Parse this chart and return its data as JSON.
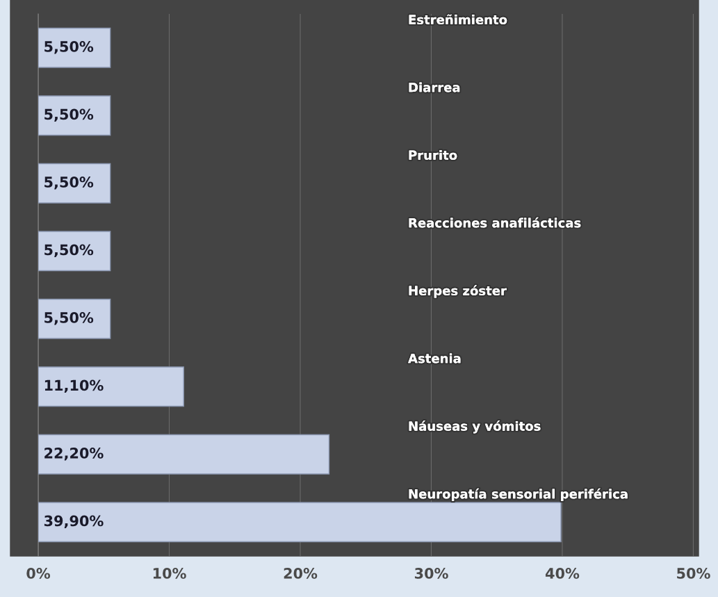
{
  "chart_data": {
    "type": "bar",
    "orientation": "horizontal",
    "categories": [
      "Estreñimiento",
      "Diarrea",
      "Prurito",
      "Reacciones anafilácticas",
      "Herpes zóster",
      "Astenia",
      "Náuseas y vómitos",
      "Neuropatía sensorial periférica"
    ],
    "values": [
      5.5,
      5.5,
      5.5,
      5.5,
      5.5,
      11.1,
      22.2,
      39.9
    ],
    "value_labels": [
      "5,50%",
      "5,50%",
      "5,50%",
      "5,50%",
      "5,50%",
      "11,10%",
      "22,20%",
      "39,90%"
    ],
    "color": "#c9d3e8",
    "xlim": [
      0,
      50.4
    ],
    "xticks": [
      {
        "value": 0,
        "label": "0%"
      },
      {
        "value": 10,
        "label": "10%"
      },
      {
        "value": 20,
        "label": "20%"
      },
      {
        "value": 30,
        "label": "30%"
      },
      {
        "value": 40,
        "label": "40%"
      },
      {
        "value": 50,
        "label": "50%"
      }
    ],
    "grid": "x",
    "legend": false
  }
}
